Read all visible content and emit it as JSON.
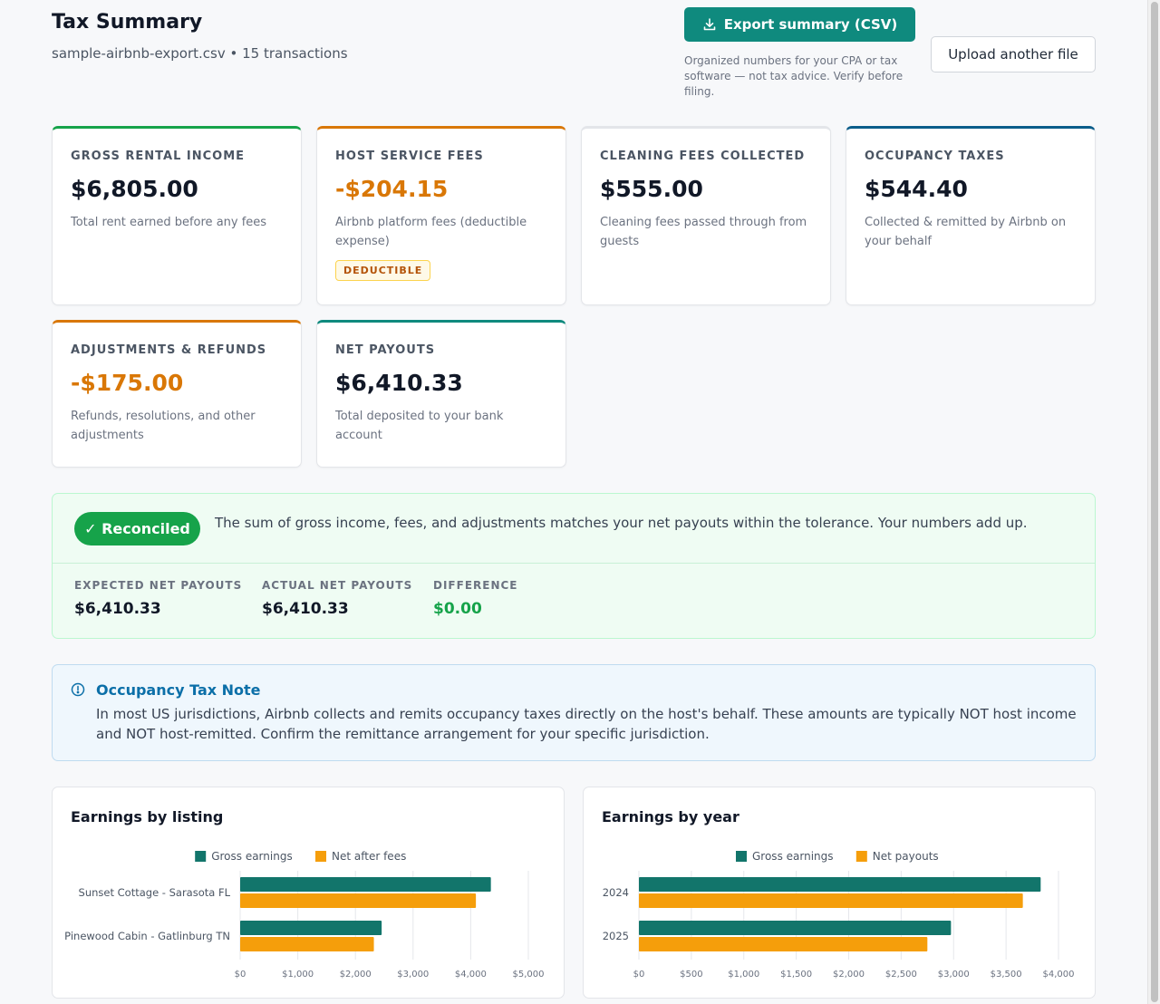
{
  "header": {
    "title": "Tax Summary",
    "subtitle": "sample-airbnb-export.csv • 15 transactions",
    "export_label": "Export summary (CSV)",
    "export_icon": "download-icon",
    "export_note": "Organized numbers for your CPA or tax software — not tax advice. Verify before filing.",
    "upload_label": "Upload another file"
  },
  "cards": [
    {
      "label": "GROSS RENTAL INCOME",
      "value": "$6,805.00",
      "desc": "Total rent earned before any fees",
      "accent": "#16a34a"
    },
    {
      "label": "HOST SERVICE FEES",
      "value": "-$204.15",
      "desc": "Airbnb platform fees (deductible expense)",
      "badge": "DEDUCTIBLE",
      "accent": "#d97706"
    },
    {
      "label": "CLEANING FEES COLLECTED",
      "value": "$555.00",
      "desc": "Cleaning fees passed through from guests"
    },
    {
      "label": "OCCUPANCY TAXES",
      "value": "$544.40",
      "desc": "Collected & remitted by Airbnb on your behalf",
      "accent": "#0b5d8a"
    },
    {
      "label": "ADJUSTMENTS & REFUNDS",
      "value": "-$175.00",
      "desc": "Refunds, resolutions, and other adjustments",
      "accent": "#d97706"
    },
    {
      "label": "NET PAYOUTS",
      "value": "$6,410.33",
      "desc": "Total deposited to your bank account",
      "accent": "#0f8a7e"
    }
  ],
  "reconciliation": {
    "status": "✓ Reconciled",
    "message": "The sum of gross income, fees, and adjustments matches your net payouts within the tolerance. Your numbers add up.",
    "expected_label": "EXPECTED NET PAYOUTS",
    "expected_value": "$6,410.33",
    "actual_label": "ACTUAL NET PAYOUTS",
    "actual_value": "$6,410.33",
    "difference_label": "DIFFERENCE",
    "difference_value": "$0.00"
  },
  "note": {
    "icon": "info-icon",
    "title": "Occupancy Tax Note",
    "body": "In most US jurisdictions, Airbnb collects and remits occupancy taxes directly on the host's behalf. These amounts are typically NOT host income and NOT host-remitted. Confirm the remittance arrangement for your specific jurisdiction."
  },
  "colors": {
    "gross": "#12756b",
    "net": "#f59e0b"
  },
  "chart_data": [
    {
      "type": "bar",
      "orientation": "horizontal",
      "title": "Earnings by listing",
      "categories": [
        "Sunset Cottage - Sarasota FL",
        "Pinewood Cabin - Gatlinburg TN"
      ],
      "series": [
        {
          "name": "Gross earnings",
          "values": [
            4350,
            2455
          ]
        },
        {
          "name": "Net after fees",
          "values": [
            4090,
            2320
          ]
        }
      ],
      "xlim": [
        0,
        5000
      ],
      "xticks": [
        "$0",
        "$1,000",
        "$2,000",
        "$3,000",
        "$4,000",
        "$5,000"
      ],
      "legend": "top-center",
      "grid": true
    },
    {
      "type": "bar",
      "orientation": "horizontal",
      "title": "Earnings by year",
      "categories": [
        "2024",
        "2025"
      ],
      "series": [
        {
          "name": "Gross earnings",
          "values": [
            3830,
            2975
          ]
        },
        {
          "name": "Net payouts",
          "values": [
            3660,
            2750
          ]
        }
      ],
      "xlim": [
        0,
        4000
      ],
      "xticks": [
        "$0",
        "$500",
        "$1,000",
        "$1,500",
        "$2,000",
        "$2,500",
        "$3,000",
        "$3,500",
        "$4,000"
      ],
      "legend": "top-center",
      "grid": true
    }
  ]
}
